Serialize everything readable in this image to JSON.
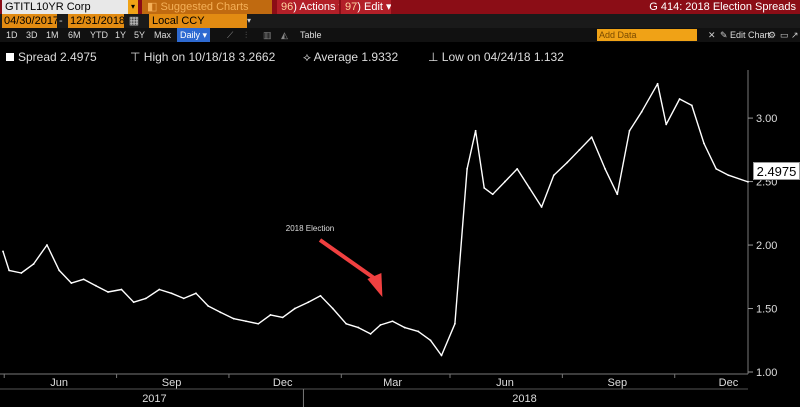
{
  "window": {
    "ticker": "GTITL10YR Corp",
    "suggested_charts": "Suggested Charts",
    "actions": {
      "num": "96",
      "label": "Actions"
    },
    "edit": {
      "num": "97",
      "label": "Edit"
    },
    "title": "G 414: 2018 Election Spreads"
  },
  "toolbar": {
    "date_from": "04/30/2017",
    "date_to": "12/31/2018",
    "currency": "Local CCY",
    "ranges": [
      "1D",
      "3D",
      "1M",
      "6M",
      "YTD",
      "1Y",
      "5Y",
      "Max"
    ],
    "frequency": "Daily",
    "table": "Table",
    "add_data_placeholder": "Add Data",
    "edit_chart": "Edit Chart"
  },
  "legend": {
    "spread": "Spread 2.4975",
    "high": "High on 10/18/18 3.2662",
    "average": "Average 1.9332",
    "low": "Low on 04/24/18 1.132"
  },
  "chart_data": {
    "type": "line",
    "series": [
      {
        "name": "Spread",
        "color": "#ffffff",
        "x": [
          "2017-04-30",
          "2017-05-05",
          "2017-05-15",
          "2017-05-25",
          "2017-06-05",
          "2017-06-15",
          "2017-06-25",
          "2017-07-05",
          "2017-07-15",
          "2017-07-25",
          "2017-08-05",
          "2017-08-15",
          "2017-08-25",
          "2017-09-05",
          "2017-09-15",
          "2017-09-25",
          "2017-10-05",
          "2017-10-15",
          "2017-10-25",
          "2017-11-05",
          "2017-11-15",
          "2017-11-25",
          "2017-12-05",
          "2017-12-15",
          "2017-12-25",
          "2018-01-05",
          "2018-01-15",
          "2018-01-25",
          "2018-02-05",
          "2018-02-15",
          "2018-02-25",
          "2018-03-05",
          "2018-03-15",
          "2018-03-25",
          "2018-04-05",
          "2018-04-15",
          "2018-04-24",
          "2018-05-05",
          "2018-05-15",
          "2018-05-22",
          "2018-05-29",
          "2018-06-05",
          "2018-06-15",
          "2018-06-25",
          "2018-07-05",
          "2018-07-15",
          "2018-07-25",
          "2018-08-05",
          "2018-08-15",
          "2018-08-25",
          "2018-09-05",
          "2018-09-15",
          "2018-09-25",
          "2018-10-05",
          "2018-10-18",
          "2018-10-25",
          "2018-11-05",
          "2018-11-15",
          "2018-11-25",
          "2018-12-05",
          "2018-12-15",
          "2018-12-31"
        ],
        "values": [
          1.95,
          1.8,
          1.78,
          1.85,
          2.0,
          1.8,
          1.7,
          1.73,
          1.68,
          1.63,
          1.65,
          1.55,
          1.58,
          1.65,
          1.62,
          1.58,
          1.62,
          1.52,
          1.47,
          1.42,
          1.4,
          1.38,
          1.45,
          1.43,
          1.5,
          1.55,
          1.6,
          1.5,
          1.38,
          1.35,
          1.3,
          1.37,
          1.4,
          1.35,
          1.32,
          1.25,
          1.13,
          1.38,
          2.6,
          2.9,
          2.45,
          2.4,
          2.5,
          2.6,
          2.45,
          2.3,
          2.55,
          2.65,
          2.75,
          2.85,
          2.6,
          2.4,
          2.9,
          3.05,
          3.27,
          2.95,
          3.15,
          3.1,
          2.8,
          2.6,
          2.55,
          2.4975
        ]
      }
    ],
    "ylim": [
      1.0,
      3.3
    ],
    "yticks": [
      "1.00",
      "1.50",
      "2.00",
      "2.50",
      "3.00"
    ],
    "xtick_labels": [
      "Jun",
      "Sep",
      "Dec",
      "Mar",
      "Jun",
      "Sep",
      "Dec"
    ],
    "year_labels": [
      "2017",
      "2018"
    ],
    "last_value_label": "2.4975",
    "annotation": {
      "text": "2018 Election",
      "color": "#f04040",
      "target_date": "2018-03-05",
      "target_value": 1.37
    }
  }
}
